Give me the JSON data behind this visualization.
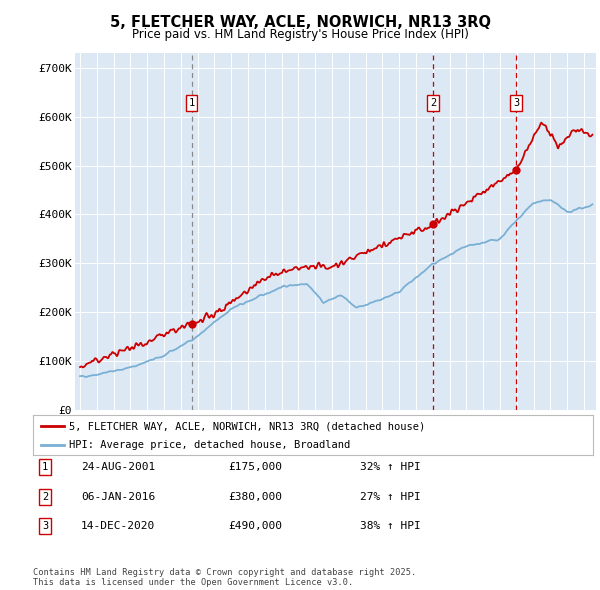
{
  "title": "5, FLETCHER WAY, ACLE, NORWICH, NR13 3RQ",
  "subtitle": "Price paid vs. HM Land Registry's House Price Index (HPI)",
  "ylabel_ticks": [
    "£0",
    "£100K",
    "£200K",
    "£300K",
    "£400K",
    "£500K",
    "£600K",
    "£700K"
  ],
  "ytick_values": [
    0,
    100000,
    200000,
    300000,
    400000,
    500000,
    600000,
    700000
  ],
  "ylim": [
    0,
    730000
  ],
  "xlim_start": 1994.7,
  "xlim_end": 2025.7,
  "bg_color": "#dce9f5",
  "red_color": "#cc0000",
  "blue_color": "#7aafd4",
  "sale_dates": [
    2001.65,
    2016.02,
    2020.96
  ],
  "sale_prices": [
    175000,
    380000,
    490000
  ],
  "sale_labels": [
    "1",
    "2",
    "3"
  ],
  "sale_line_styles": [
    "dashed_gray",
    "dashed_red",
    "dashed_red"
  ],
  "legend_line1": "5, FLETCHER WAY, ACLE, NORWICH, NR13 3RQ (detached house)",
  "legend_line2": "HPI: Average price, detached house, Broadland",
  "table_entries": [
    {
      "num": "1",
      "date": "24-AUG-2001",
      "price": "£175,000",
      "change": "32% ↑ HPI"
    },
    {
      "num": "2",
      "date": "06-JAN-2016",
      "price": "£380,000",
      "change": "27% ↑ HPI"
    },
    {
      "num": "3",
      "date": "14-DEC-2020",
      "price": "£490,000",
      "change": "38% ↑ HPI"
    }
  ],
  "footer": "Contains HM Land Registry data © Crown copyright and database right 2025.\nThis data is licensed under the Open Government Licence v3.0."
}
